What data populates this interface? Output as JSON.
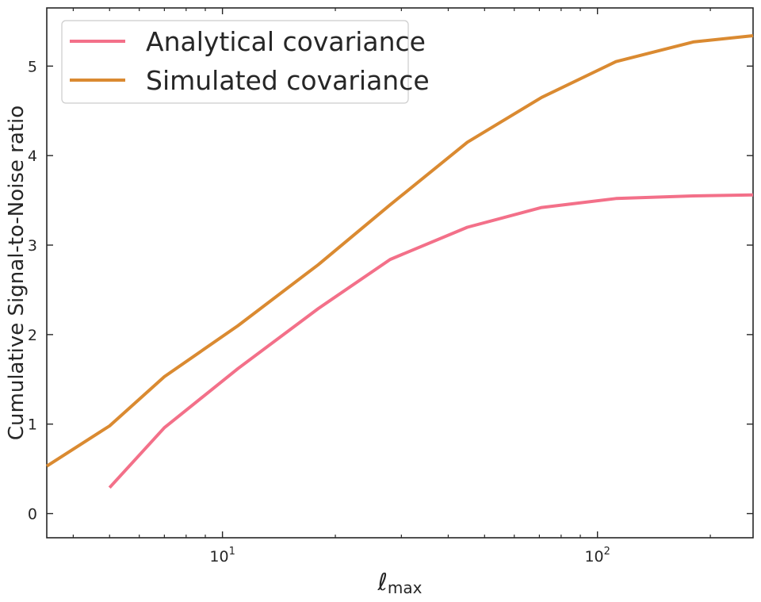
{
  "chart_data": {
    "type": "line",
    "xscale": "log",
    "xlim": [
      3.4,
      260
    ],
    "ylim": [
      -0.27,
      5.65
    ],
    "x_major_ticks": [
      {
        "value": 10,
        "base": "10",
        "exp": "1"
      },
      {
        "value": 100,
        "base": "10",
        "exp": "2"
      }
    ],
    "x_minor_ticks": [
      4,
      5,
      6,
      7,
      8,
      9,
      20,
      30,
      40,
      50,
      60,
      70,
      80,
      90,
      200
    ],
    "y_ticks": [
      0,
      1,
      2,
      3,
      4,
      5
    ],
    "y_tick_labels": [
      "0",
      "1",
      "2",
      "3",
      "4",
      "5"
    ],
    "xlabel": "ℓ",
    "xlabel_sub": "max",
    "ylabel": "Cumulative Signal-to-Noise ratio",
    "grid": false,
    "legend": "top-left",
    "series": [
      {
        "name": "Analytical covariance",
        "color": "#f37089",
        "x": [
          5,
          7,
          11,
          18,
          28,
          45,
          71,
          112,
          180,
          260
        ],
        "y": [
          0.29,
          0.96,
          1.62,
          2.29,
          2.84,
          3.2,
          3.42,
          3.52,
          3.55,
          3.56
        ]
      },
      {
        "name": "Simulated covariance",
        "color": "#da8a31",
        "x": [
          3.4,
          5,
          7,
          11,
          18,
          28,
          45,
          71,
          112,
          180,
          260
        ],
        "y": [
          0.53,
          0.98,
          1.53,
          2.1,
          2.78,
          3.45,
          4.15,
          4.65,
          5.05,
          5.27,
          5.34
        ]
      }
    ]
  }
}
